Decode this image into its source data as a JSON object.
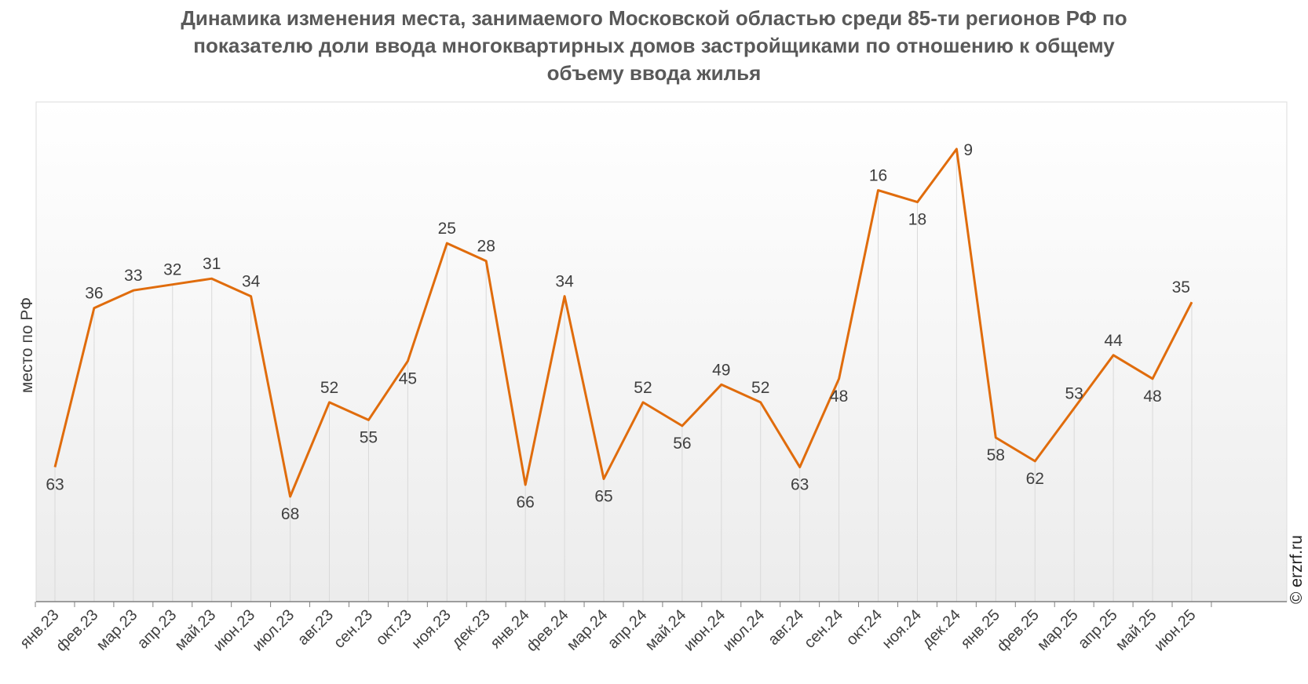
{
  "chart_data": {
    "type": "line",
    "title": "Динамика изменения места, занимаемого Московской областью среди 85-ти регионов РФ по\nпоказателю доли ввода многоквартирных домов застройщиками по отношению к общему\nобъему ввода жилья",
    "ylabel": "место по РФ",
    "xlabel": "",
    "y_reversed": true,
    "ylim": [
      1,
      85
    ],
    "grid": false,
    "color": "#e06c0c",
    "categories": [
      "янв.23",
      "фев.23",
      "мар.23",
      "апр.23",
      "май.23",
      "июн.23",
      "июл.23",
      "авг.23",
      "сен.23",
      "окт.23",
      "ноя.23",
      "дек.23",
      "янв.24",
      "фев.24",
      "мар.24",
      "апр.24",
      "май.24",
      "июн.24",
      "июл.24",
      "авг.24",
      "сен.24",
      "окт.24",
      "ноя.24",
      "дек.24",
      "янв.25",
      "фев.25",
      "мар.25",
      "апр.25",
      "май.25",
      "июн.25"
    ],
    "series": [
      {
        "values": [
          63,
          36,
          33,
          32,
          31,
          34,
          68,
          52,
          55,
          45,
          25,
          28,
          66,
          34,
          65,
          52,
          56,
          49,
          52,
          63,
          48,
          16,
          18,
          9,
          58,
          62,
          53,
          44,
          48,
          35
        ]
      }
    ]
  },
  "credit": "© erzrf.ru"
}
